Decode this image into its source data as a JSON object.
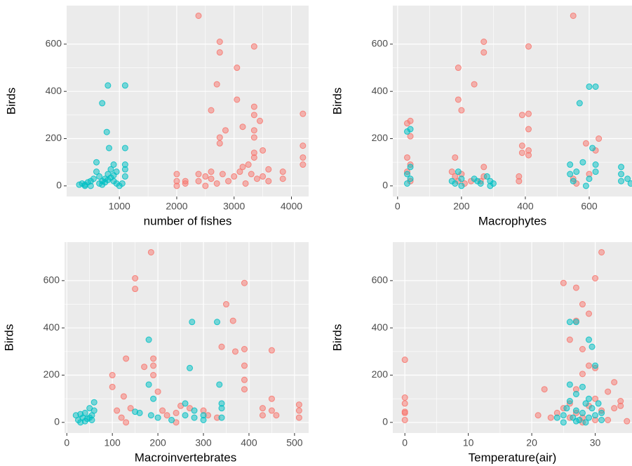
{
  "chart_data": [
    {
      "type": "scatter",
      "x_label": "number of fishes",
      "y_label": "Birds",
      "xlim": [
        80,
        4300
      ],
      "ylim": [
        -45,
        763
      ],
      "xticks": [
        1000,
        2000,
        3000,
        4000
      ],
      "yticks": [
        0,
        200,
        400,
        600
      ],
      "grid": true,
      "series": [
        {
          "color": "#F8766D",
          "x": [
            2380,
            2750,
            2750,
            3350,
            2700,
            3050,
            3050,
            2600,
            3350,
            3350,
            3450,
            4200,
            2850,
            3150,
            2750,
            2750,
            3350,
            3350,
            3350,
            3350,
            3500,
            4200,
            4200,
            4200,
            2000,
            2000,
            2000,
            2150,
            2150,
            2380,
            2380,
            2600,
            2600,
            2700,
            2800,
            2900,
            3000,
            3100,
            3200,
            3300,
            3400,
            3500,
            3600,
            3600,
            3850,
            3850,
            2500,
            2500,
            3150,
            3250
          ],
          "values": [
            720,
            610,
            565,
            590,
            430,
            500,
            365,
            320,
            335,
            300,
            275,
            305,
            235,
            250,
            205,
            180,
            235,
            205,
            140,
            120,
            150,
            170,
            120,
            90,
            50,
            20,
            0,
            20,
            10,
            50,
            20,
            60,
            30,
            10,
            50,
            20,
            40,
            60,
            10,
            50,
            30,
            40,
            70,
            20,
            60,
            30,
            40,
            0,
            80,
            90
          ]
        },
        {
          "color": "#00BFC4",
          "x": [
            300,
            350,
            400,
            450,
            500,
            550,
            600,
            650,
            700,
            750,
            800,
            850,
            900,
            950,
            1000,
            1050,
            1100,
            600,
            650,
            700,
            750,
            800,
            850,
            900,
            700,
            800,
            1100,
            780,
            820,
            1100,
            1100,
            1100,
            900,
            950,
            500,
            400
          ],
          "values": [
            5,
            10,
            0,
            15,
            20,
            30,
            60,
            40,
            20,
            30,
            50,
            70,
            90,
            60,
            0,
            10,
            40,
            100,
            10,
            5,
            15,
            25,
            35,
            45,
            350,
            425,
            425,
            228,
            160,
            160,
            90,
            70,
            20,
            10,
            0,
            5
          ]
        }
      ]
    },
    {
      "type": "scatter",
      "x_label": "Macrophytes",
      "y_label": "Birds",
      "xlim": [
        -15,
        734
      ],
      "ylim": [
        -45,
        763
      ],
      "xticks": [
        0,
        200,
        400,
        600
      ],
      "yticks": [
        0,
        200,
        400,
        600
      ],
      "grid": true,
      "series": [
        {
          "color": "#F8766D",
          "x": [
            30,
            40,
            40,
            30,
            40,
            30,
            40,
            190,
            190,
            200,
            240,
            270,
            270,
            410,
            390,
            410,
            390,
            390,
            410,
            410,
            410,
            550,
            590,
            630,
            620,
            170,
            180,
            190,
            200,
            230,
            270,
            270,
            260,
            380,
            380,
            550,
            560,
            600,
            180,
            210
          ],
          "values": [
            265,
            275,
            210,
            120,
            90,
            60,
            20,
            500,
            365,
            320,
            430,
            610,
            565,
            590,
            300,
            305,
            170,
            140,
            240,
            150,
            130,
            720,
            180,
            200,
            150,
            60,
            40,
            20,
            50,
            20,
            80,
            40,
            20,
            40,
            20,
            30,
            10,
            50,
            120,
            10
          ]
        },
        {
          "color": "#00BFC4",
          "x": [
            30,
            40,
            30,
            40,
            30,
            40,
            190,
            200,
            180,
            170,
            200,
            250,
            260,
            240,
            290,
            300,
            290,
            280,
            540,
            540,
            550,
            570,
            580,
            560,
            600,
            620,
            610,
            620,
            620,
            600,
            590,
            700,
            700,
            700,
            720,
            730
          ],
          "values": [
            230,
            240,
            50,
            30,
            10,
            80,
            60,
            30,
            10,
            20,
            0,
            20,
            10,
            30,
            20,
            10,
            0,
            40,
            90,
            50,
            20,
            350,
            100,
            60,
            420,
            420,
            160,
            90,
            60,
            30,
            0,
            80,
            50,
            20,
            30,
            10
          ]
        }
      ]
    },
    {
      "type": "scatter",
      "x_label": "Macroinvertebrates",
      "y_label": "Birds",
      "xlim": [
        -5,
        531
      ],
      "ylim": [
        -45,
        763
      ],
      "xticks": [
        0,
        100,
        200,
        300,
        400,
        500
      ],
      "yticks": [
        0,
        200,
        400,
        600
      ],
      "grid": true,
      "series": [
        {
          "color": "#F8766D",
          "x": [
            100,
            100,
            110,
            120,
            125,
            130,
            140,
            150,
            150,
            170,
            185,
            190,
            190,
            190,
            210,
            220,
            240,
            250,
            300,
            310,
            340,
            350,
            365,
            370,
            390,
            390,
            390,
            390,
            390,
            430,
            430,
            450,
            450,
            450,
            460,
            510,
            510,
            510,
            330,
            200,
            240,
            270,
            130
          ],
          "values": [
            200,
            150,
            50,
            20,
            110,
            270,
            60,
            610,
            565,
            235,
            720,
            270,
            240,
            200,
            50,
            30,
            40,
            70,
            50,
            30,
            320,
            500,
            430,
            300,
            590,
            310,
            240,
            180,
            140,
            60,
            30,
            305,
            100,
            50,
            30,
            75,
            50,
            20,
            20,
            130,
            0,
            60,
            0
          ]
        },
        {
          "color": "#00BFC4",
          "x": [
            20,
            25,
            30,
            35,
            40,
            45,
            50,
            55,
            60,
            60,
            30,
            40,
            50,
            55,
            150,
            160,
            180,
            180,
            185,
            190,
            200,
            260,
            270,
            275,
            280,
            280,
            300,
            300,
            330,
            335,
            340,
            340,
            340,
            260,
            230
          ],
          "values": [
            30,
            10,
            0,
            20,
            40,
            15,
            60,
            30,
            85,
            50,
            35,
            5,
            20,
            10,
            45,
            40,
            350,
            160,
            30,
            100,
            20,
            80,
            230,
            425,
            50,
            20,
            10,
            30,
            425,
            160,
            80,
            60,
            20,
            30,
            10
          ]
        }
      ]
    },
    {
      "type": "scatter",
      "x_label": "Temperature(air)",
      "y_label": "Birds",
      "xlim": [
        -1.9,
        35.8
      ],
      "ylim": [
        -45,
        763
      ],
      "xticks": [
        0,
        10,
        20,
        30
      ],
      "yticks": [
        0,
        200,
        400,
        600
      ],
      "grid": true,
      "series": [
        {
          "color": "#F8766D",
          "x": [
            0,
            0,
            0,
            0,
            0,
            0,
            25,
            27,
            28,
            29,
            30,
            31,
            27,
            26,
            28,
            29,
            30,
            28,
            27,
            22,
            21,
            23,
            24,
            25,
            26,
            27,
            28,
            29,
            30,
            31,
            32,
            33,
            33,
            34,
            34,
            32,
            35,
            26,
            28,
            30
          ],
          "values": [
            265,
            105,
            80,
            45,
            40,
            10,
            590,
            430,
            500,
            460,
            610,
            720,
            570,
            350,
            310,
            240,
            230,
            205,
            140,
            140,
            30,
            20,
            40,
            60,
            80,
            40,
            20,
            70,
            10,
            50,
            130,
            170,
            60,
            90,
            70,
            10,
            5,
            20,
            0,
            100
          ]
        },
        {
          "color": "#00BFC4",
          "x": [
            25,
            25.5,
            26,
            27,
            26,
            27,
            28,
            28.5,
            29,
            29.5,
            30,
            26.5,
            27,
            27.5,
            28,
            28.5,
            29,
            29.5,
            30,
            30.5,
            31,
            26,
            27,
            29,
            31,
            24,
            25
          ],
          "values": [
            30,
            60,
            425,
            425,
            160,
            120,
            150,
            80,
            350,
            320,
            240,
            20,
            50,
            10,
            40,
            0,
            20,
            60,
            30,
            80,
            40,
            90,
            5,
            100,
            10,
            20,
            0
          ]
        }
      ]
    }
  ]
}
